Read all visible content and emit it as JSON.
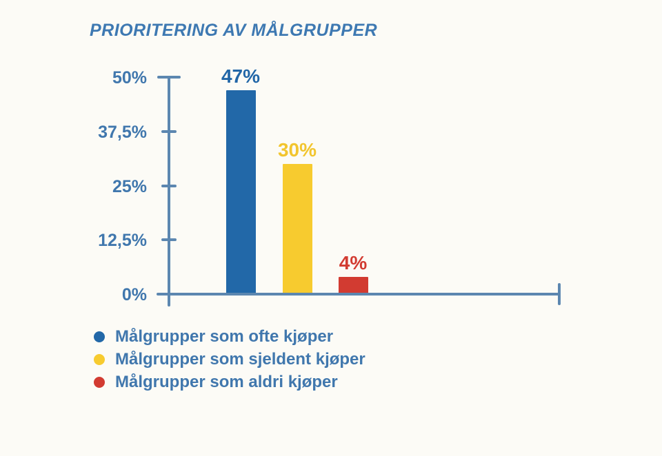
{
  "title": "PRIORITERING AV MÅLGRUPPER",
  "colors": {
    "background": "#fcfbf6",
    "title_text": "#3e79b2",
    "axis": "#5c87b0",
    "tick_label_text": "#4077ad",
    "legend_text": "#4077ad",
    "bar_blue": "#2268a8",
    "bar_yellow": "#f7cb2f",
    "bar_red": "#d23b31"
  },
  "chart_data": {
    "type": "bar",
    "title": "PRIORITERING AV MÅLGRUPPER",
    "categories": [
      "Målgrupper som ofte kjøper",
      "Målgrupper som sjeldent kjøper",
      "Målgrupper som aldri kjøper"
    ],
    "values": [
      47,
      30,
      4
    ],
    "value_labels": [
      "47%",
      "30%",
      "4%"
    ],
    "bar_colors": [
      "#2268a8",
      "#f7cb2f",
      "#d23b31"
    ],
    "value_label_colors": [
      "#2166a7",
      "#f2c52e",
      "#d23b31"
    ],
    "xlabel": "",
    "ylabel": "",
    "ylim": [
      0,
      50
    ],
    "y_ticks": [
      0,
      12.5,
      25,
      37.5,
      50
    ],
    "y_tick_labels": [
      "0%",
      "12,5%",
      "25%",
      "37,5%",
      "50%"
    ],
    "grid": false,
    "legend_position": "bottom-left"
  },
  "legend": {
    "items": [
      {
        "label": "Målgrupper som ofte kjøper",
        "color": "#2268a8"
      },
      {
        "label": "Målgrupper som sjeldent kjøper",
        "color": "#f7cb2f"
      },
      {
        "label": "Målgrupper som aldri kjøper",
        "color": "#d23b31"
      }
    ]
  }
}
